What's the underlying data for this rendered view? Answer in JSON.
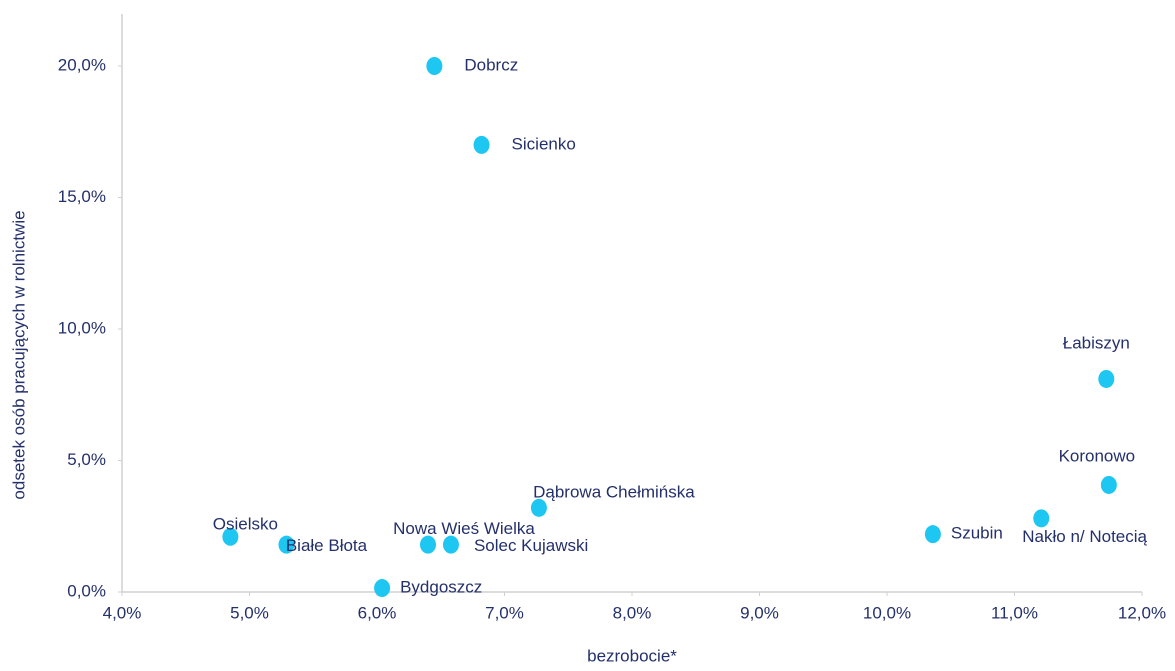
{
  "chart_data": {
    "type": "scatter",
    "xlabel": "bezrobocie*",
    "ylabel": "odsetek osób pracujących w rolnictwie",
    "labels": [
      "Dobrcz",
      "Sicienko",
      "Łabiszyn",
      "Koronowo",
      "Nakło n/ Notecią",
      "Szubin",
      "Dąbrowa Chełmińska",
      "Osielsko",
      "Białe Błota",
      "Nowa Wieś Wielka",
      "Solec Kujawski",
      "Bydgoszcz"
    ],
    "x": [
      6.45,
      6.82,
      11.72,
      11.74,
      11.21,
      10.36,
      7.27,
      4.85,
      5.29,
      6.4,
      6.58,
      6.04
    ],
    "y": [
      20.0,
      17.0,
      8.1,
      4.07,
      2.8,
      2.2,
      3.2,
      2.1,
      1.8,
      1.8,
      1.8,
      0.15
    ],
    "color": "#1ec6f2",
    "xlim": [
      4,
      12
    ],
    "ylim": [
      0,
      20
    ],
    "xticks": [
      {
        "value": 4,
        "label": "4,0%"
      },
      {
        "value": 5,
        "label": "5,0%"
      },
      {
        "value": 6,
        "label": "6,0%"
      },
      {
        "value": 7,
        "label": "7,0%"
      },
      {
        "value": 8,
        "label": "8,0%"
      },
      {
        "value": 9,
        "label": "9,0%"
      },
      {
        "value": 10,
        "label": "10,0%"
      },
      {
        "value": 11,
        "label": "11,0%"
      },
      {
        "value": 12,
        "label": "12,0%"
      }
    ],
    "yticks": [
      {
        "value": 0,
        "label": "0,0%"
      },
      {
        "value": 5,
        "label": "5,0%"
      },
      {
        "value": 10,
        "label": "10,0%"
      },
      {
        "value": 15,
        "label": "15,0%"
      },
      {
        "value": 20,
        "label": "20,0%"
      }
    ]
  }
}
